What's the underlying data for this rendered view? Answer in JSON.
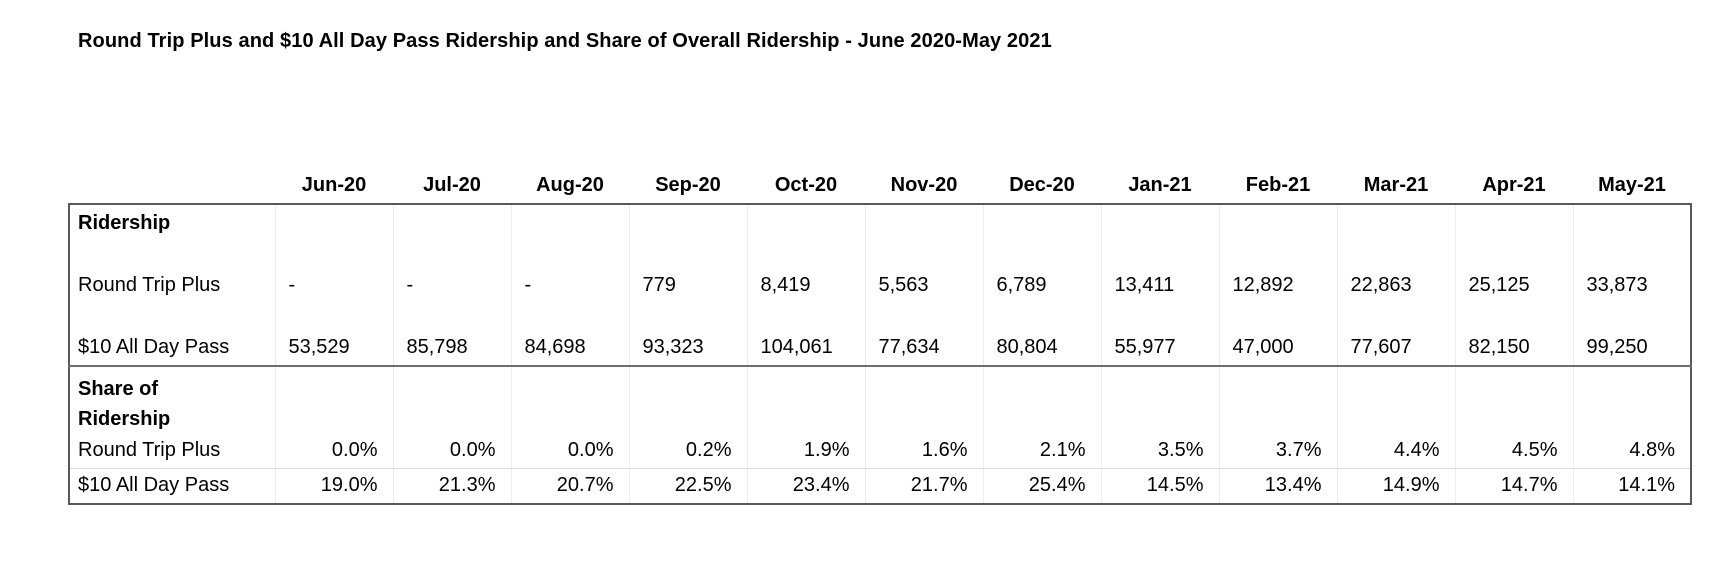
{
  "title": "Round Trip Plus and $10 All Day Pass Ridership and Share of Overall Ridership - June 2020-May 2021",
  "colors": {
    "background": "#ffffff",
    "text": "#000000",
    "table_border": "#595959",
    "section_divider": "#6e6e6e",
    "row_divider": "#d9d9d9",
    "column_gridline": "#ececec"
  },
  "chart_data": {
    "type": "table",
    "title": "Round Trip Plus and $10 All Day Pass Ridership and Share of Overall Ridership - June 2020-May 2021",
    "categories": [
      "Jun-20",
      "Jul-20",
      "Aug-20",
      "Sep-20",
      "Oct-20",
      "Nov-20",
      "Dec-20",
      "Jan-21",
      "Feb-21",
      "Mar-21",
      "Apr-21",
      "May-21"
    ],
    "series": [
      {
        "section": "Ridership",
        "name": "Round Trip Plus",
        "values": [
          null,
          null,
          null,
          779,
          8419,
          5563,
          6789,
          13411,
          12892,
          22863,
          25125,
          33873
        ]
      },
      {
        "section": "Ridership",
        "name": "$10 All Day Pass",
        "values": [
          53529,
          85798,
          84698,
          93323,
          104061,
          77634,
          80804,
          55977,
          47000,
          77607,
          82150,
          99250
        ]
      },
      {
        "section": "Share of Ridership",
        "name": "Round Trip Plus",
        "values": [
          0.0,
          0.0,
          0.0,
          0.2,
          1.9,
          1.6,
          2.1,
          3.5,
          3.7,
          4.4,
          4.5,
          4.8
        ]
      },
      {
        "section": "Share of Ridership",
        "name": "$10 All Day Pass",
        "values": [
          19.0,
          21.3,
          20.7,
          22.5,
          23.4,
          21.7,
          25.4,
          14.5,
          13.4,
          14.9,
          14.7,
          14.1
        ]
      }
    ]
  },
  "table": {
    "columns": [
      "Jun-20",
      "Jul-20",
      "Aug-20",
      "Sep-20",
      "Oct-20",
      "Nov-20",
      "Dec-20",
      "Jan-21",
      "Feb-21",
      "Mar-21",
      "Apr-21",
      "May-21"
    ],
    "sections": [
      {
        "label": "Ridership",
        "rows": [
          {
            "label": "Round Trip Plus",
            "values": [
              "-",
              "-",
              "-",
              "779",
              "8,419",
              "5,563",
              "6,789",
              "13,411",
              "12,892",
              "22,863",
              "25,125",
              "33,873"
            ]
          },
          {
            "label": "$10 All Day Pass",
            "values": [
              "53,529",
              "85,798",
              "84,698",
              "93,323",
              "104,061",
              "77,634",
              "80,804",
              "55,977",
              "47,000",
              "77,607",
              "82,150",
              "99,250"
            ]
          }
        ]
      },
      {
        "label": "Share of Ridership",
        "rows": [
          {
            "label": "Round Trip Plus",
            "values": [
              "0.0%",
              "0.0%",
              "0.0%",
              "0.2%",
              "1.9%",
              "1.6%",
              "2.1%",
              "3.5%",
              "3.7%",
              "4.4%",
              "4.5%",
              "4.8%"
            ]
          },
          {
            "label": "$10 All Day Pass",
            "values": [
              "19.0%",
              "21.3%",
              "20.7%",
              "22.5%",
              "23.4%",
              "21.7%",
              "25.4%",
              "14.5%",
              "13.4%",
              "14.9%",
              "14.7%",
              "14.1%"
            ]
          }
        ]
      }
    ]
  }
}
